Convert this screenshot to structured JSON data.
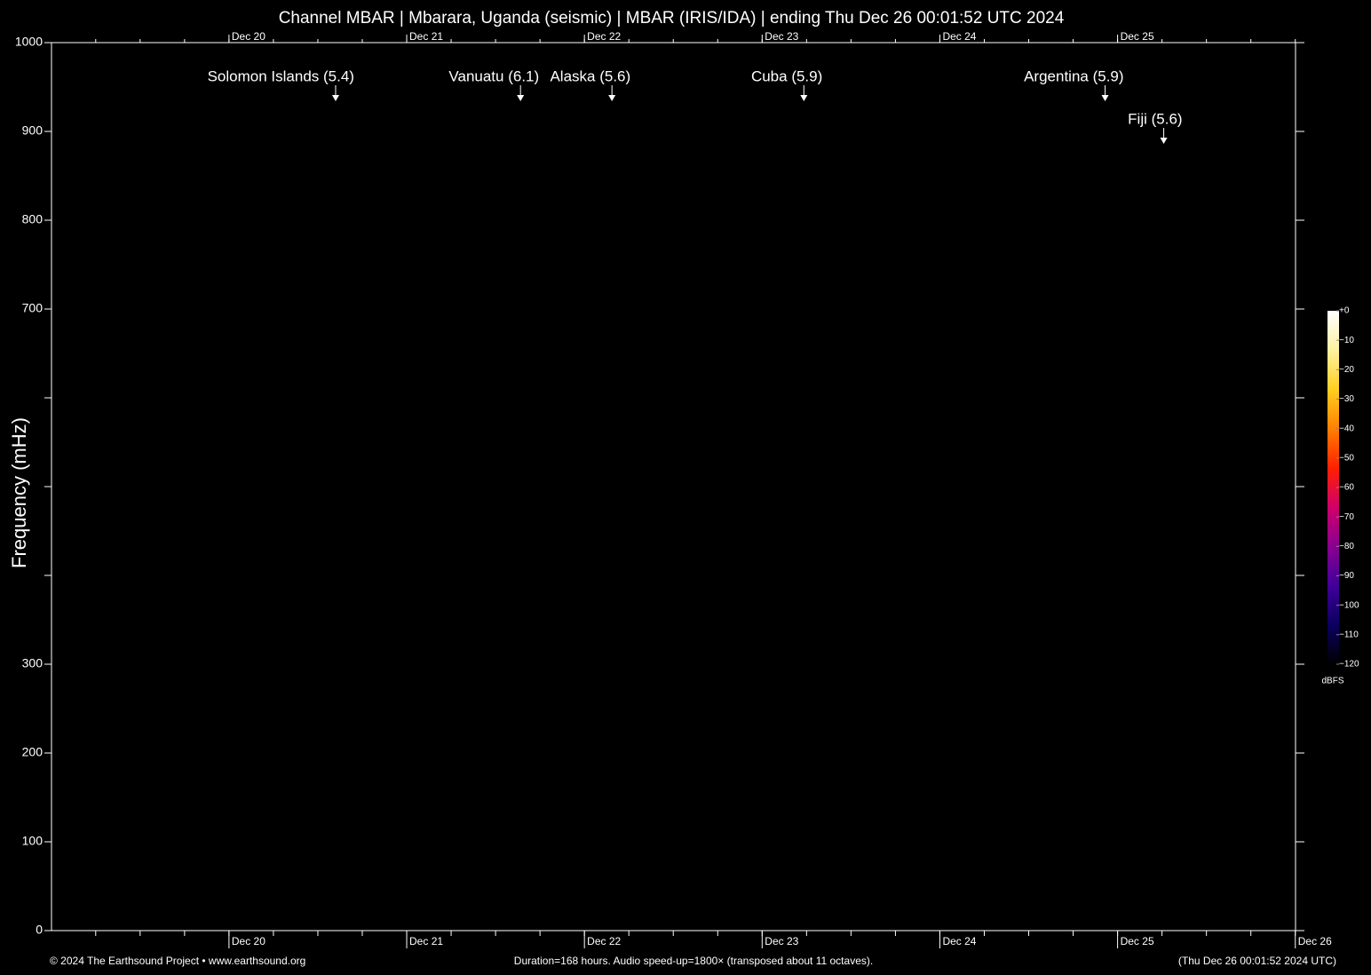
{
  "chart_data": {
    "type": "spectrogram",
    "title": "Channel MBAR | Mbarara, Uganda (seismic) | MBAR (IRIS/IDA) | ending Thu Dec 26 00:01:52 UTC 2024",
    "y_label": "Frequency (mHz)",
    "ylim": [
      0,
      1000
    ],
    "yticks": [
      0,
      100,
      200,
      300,
      {
        "value": 400,
        "label": null
      },
      {
        "value": 500,
        "label": null
      },
      {
        "value": 600,
        "label": null
      },
      700,
      800,
      900,
      1000
    ],
    "xlim": [
      "2024-12-19T00:01:52Z",
      "2024-12-26T00:01:52Z"
    ],
    "xticks": [
      {
        "value": "2024-12-20",
        "label": "Dec 20"
      },
      {
        "value": "2024-12-21",
        "label": "Dec 21"
      },
      {
        "value": "2024-12-22",
        "label": "Dec 22"
      },
      {
        "value": "2024-12-23",
        "label": "Dec 23"
      },
      {
        "value": "2024-12-24",
        "label": "Dec 24"
      },
      {
        "value": "2024-12-25",
        "label": "Dec 25"
      },
      {
        "value": "2024-12-26",
        "label": "Dec 26"
      }
    ],
    "events": [
      {
        "label": "Solomon Islands (5.4)",
        "x": "2024-12-20T14:24Z"
      },
      {
        "label": "Vanuatu (6.1)",
        "x": "2024-12-21T15:22Z"
      },
      {
        "label": "Alaska (5.6)",
        "x": "2024-12-22T03:43Z"
      },
      {
        "label": "Cuba (5.9)",
        "x": "2024-12-23T05:38Z"
      },
      {
        "label": "Argentina (5.9)",
        "x": "2024-12-24T22:19Z"
      },
      {
        "label": "Fiji (5.6)",
        "x": "2024-12-25T06:14Z"
      }
    ],
    "colorbar": {
      "label": "dBFS",
      "lim": [
        0,
        -120
      ],
      "ticks": [
        {
          "value": 0,
          "label": "+0"
        },
        {
          "value": -10,
          "label": "−10"
        },
        {
          "value": -20,
          "label": "−20"
        },
        {
          "value": -30,
          "label": "−30"
        },
        {
          "value": -40,
          "label": "−40"
        },
        {
          "value": -50,
          "label": "−50"
        },
        {
          "value": -60,
          "label": "−60"
        },
        {
          "value": -70,
          "label": "−70"
        },
        {
          "value": -80,
          "label": "−80"
        },
        {
          "value": -90,
          "label": "−90"
        },
        {
          "value": -100,
          "label": "−100"
        },
        {
          "value": -110,
          "label": "−110"
        },
        {
          "value": -120,
          "label": "−120"
        }
      ],
      "colors": [
        "#ffffff",
        "#fff2a0",
        "#ffd020",
        "#ff8000",
        "#ff2000",
        "#d0006a",
        "#8a0090",
        "#40009a",
        "#0a0060",
        "#000000"
      ]
    },
    "footer_left": "© 2024 The Earthsound Project • www.earthsound.org",
    "footer_center": "Duration=168 hours. Audio speed-up=1800× (transposed about 11 octaves).",
    "footer_right": "(Thu Dec 26 00:01:52 2024 UTC)"
  }
}
